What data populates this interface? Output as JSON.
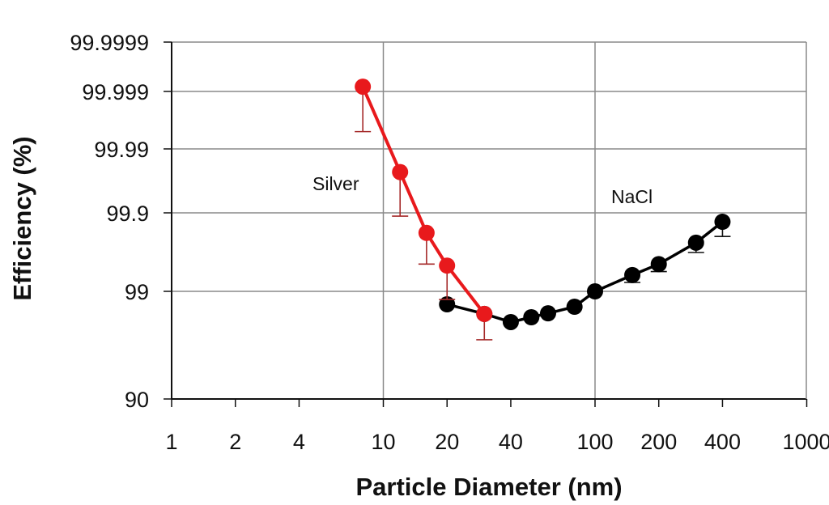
{
  "chart_data": {
    "type": "line",
    "title": "",
    "xlabel": "Particle Diameter (nm)",
    "ylabel": "Efficiency (%)",
    "x_scale": "log",
    "y_scale": "log of penetration (100 - efficiency)",
    "xlim": [
      1,
      1000
    ],
    "ylim": [
      90,
      99.9999
    ],
    "x_ticks": [
      "1",
      "2",
      "4",
      "10",
      "20",
      "40",
      "100",
      "200",
      "400",
      "1000"
    ],
    "y_ticks": [
      "90",
      "99",
      "99.9",
      "99.99",
      "99.999",
      "99.9999"
    ],
    "grid": "major gridlines at 10 and 100 nm and at each efficiency tick",
    "series": [
      {
        "name": "Silver",
        "color": "#e8191c",
        "x": [
          8,
          12,
          16,
          20,
          30
        ],
        "y": [
          99.9992,
          99.977,
          99.82,
          99.53,
          98.38
        ],
        "error_low": [
          99.995,
          99.89,
          99.55,
          98.81,
          97.18
        ]
      },
      {
        "name": "NaCl",
        "color": "#000000",
        "x": [
          20,
          30,
          40,
          50,
          60,
          80,
          100,
          150,
          200,
          300,
          400
        ],
        "y": [
          98.68,
          98.38,
          98.07,
          98.26,
          98.4,
          98.61,
          99.0,
          99.38,
          99.55,
          99.76,
          99.87
        ],
        "error_low": [
          null,
          null,
          null,
          null,
          null,
          null,
          null,
          99.23,
          99.44,
          99.68,
          99.8
        ]
      }
    ]
  }
}
